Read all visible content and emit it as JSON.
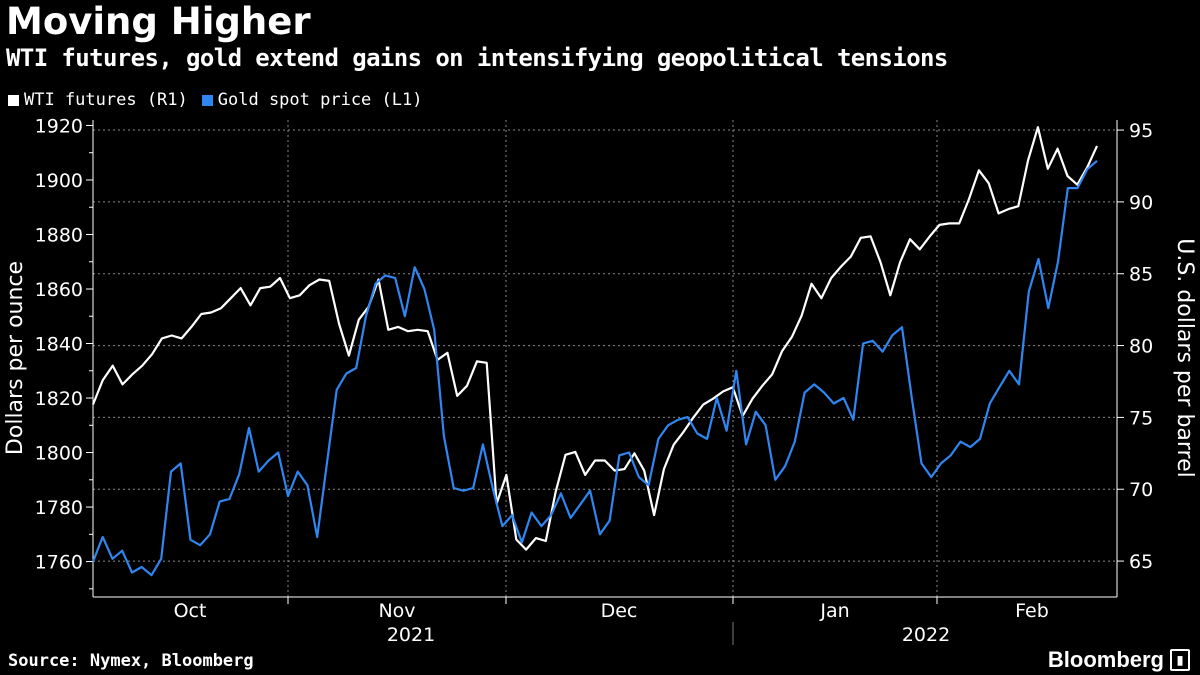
{
  "header": {
    "title": "Moving Higher",
    "subtitle": "WTI futures, gold extend gains on intensifying geopolitical tensions"
  },
  "legend": [
    {
      "label": "WTI futures (R1)",
      "color": "#ffffff"
    },
    {
      "label": "Gold spot price (L1)",
      "color": "#2f86f0"
    }
  ],
  "footer": {
    "source": "Source: Nymex, Bloomberg",
    "brand": "Bloomberg"
  },
  "chart_data": {
    "type": "line",
    "title": "Moving Higher",
    "subtitle": "WTI futures, gold extend gains on intensifying geopolitical tensions",
    "y_left_label": "Dollars per ounce",
    "y_right_label": "U.S. dollars per barrel",
    "y_left_range": [
      1747,
      1922
    ],
    "y_left_ticks": [
      1760,
      1780,
      1800,
      1820,
      1840,
      1860,
      1880,
      1900,
      1920
    ],
    "y_right_range": [
      62.5,
      95.7
    ],
    "y_right_ticks": [
      65,
      70,
      75,
      80,
      85,
      90,
      95
    ],
    "x_month_labels": [
      "Oct",
      "Nov",
      "Dec",
      "Jan",
      "Feb"
    ],
    "x_year_labels": [
      "2021",
      "2022"
    ],
    "grid": true,
    "legend_position": "top-left",
    "series": [
      {
        "name": "WTI futures (R1)",
        "axis": "right",
        "color": "#ffffff",
        "values": [
          75.9,
          77.6,
          78.6,
          77.3,
          78.0,
          78.6,
          79.4,
          80.5,
          80.7,
          80.5,
          81.3,
          82.2,
          82.3,
          82.6,
          83.3,
          84.0,
          82.8,
          84.0,
          84.1,
          84.7,
          83.3,
          83.5,
          84.2,
          84.6,
          84.5,
          81.5,
          79.3,
          81.8,
          82.7,
          84.6,
          81.1,
          81.3,
          81.0,
          81.1,
          81.0,
          79.0,
          79.5,
          76.5,
          77.2,
          78.9,
          78.8,
          69.0,
          71.0,
          66.5,
          65.8,
          66.6,
          66.4,
          69.8,
          72.4,
          72.6,
          71.0,
          72.0,
          72.0,
          71.3,
          71.4,
          72.5,
          71.3,
          68.2,
          71.4,
          73.1,
          74.0,
          75.0,
          75.9,
          76.3,
          76.8,
          77.1,
          75.1,
          76.3,
          77.2,
          78.0,
          79.6,
          80.6,
          82.1,
          84.3,
          83.3,
          84.7,
          85.5,
          86.2,
          87.5,
          87.6,
          85.8,
          83.5,
          85.8,
          87.4,
          86.7,
          87.6,
          88.4,
          88.5,
          88.5,
          90.2,
          92.2,
          91.3,
          89.2,
          89.5,
          89.7,
          92.9,
          95.2,
          92.3,
          93.7,
          91.8,
          91.2,
          92.4,
          93.9
        ]
      },
      {
        "name": "Gold spot price (L1)",
        "axis": "left",
        "color": "#2f86f0",
        "values": [
          1760,
          1769,
          1761,
          1764,
          1756,
          1758,
          1755,
          1761,
          1793,
          1796,
          1768,
          1766,
          1770,
          1782,
          1783,
          1792,
          1809,
          1793,
          1797,
          1800,
          1784,
          1793,
          1788,
          1769,
          1796,
          1823,
          1829,
          1831,
          1850,
          1862,
          1865,
          1864,
          1850,
          1868,
          1860,
          1845,
          1806,
          1787,
          1786,
          1787,
          1803,
          1787,
          1773,
          1777,
          1767,
          1778,
          1773,
          1777,
          1785,
          1776,
          1781,
          1786,
          1770,
          1775,
          1799,
          1800,
          1791,
          1788,
          1805,
          1810,
          1812,
          1813,
          1807,
          1805,
          1820,
          1808,
          1830,
          1803,
          1815,
          1810,
          1790,
          1795,
          1804,
          1822,
          1825,
          1822,
          1818,
          1820,
          1812,
          1840,
          1841,
          1837,
          1843,
          1846,
          1820,
          1796,
          1791,
          1796,
          1799,
          1804,
          1802,
          1805,
          1818,
          1824,
          1830,
          1825,
          1859,
          1871,
          1853,
          1870,
          1897,
          1897,
          1904,
          1907
        ]
      }
    ]
  }
}
